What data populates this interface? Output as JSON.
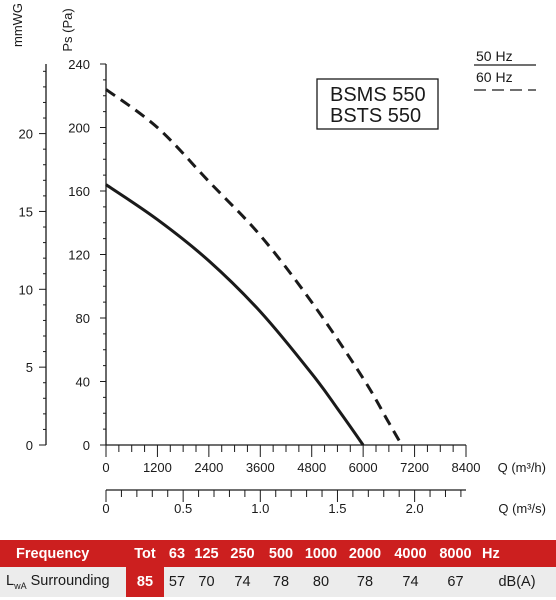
{
  "chart_data": {
    "type": "line",
    "models": [
      "BSMS 550",
      "BSTS 550"
    ],
    "legend": {
      "placement": "top-right",
      "labels": [
        "50 Hz",
        "60 Hz"
      ]
    },
    "left_axes": [
      {
        "label": "mmWG",
        "ticks": [
          "0",
          "5",
          "10",
          "15",
          "20"
        ],
        "range": [
          0,
          24.47
        ]
      },
      {
        "label": "Ps (Pa)",
        "ticks": [
          "0",
          "40",
          "80",
          "120",
          "160",
          "200",
          "240"
        ],
        "range": [
          0,
          240
        ]
      }
    ],
    "bottom_axes": [
      {
        "label": "Q (m³/h)",
        "ticks": [
          "0",
          "1200",
          "2400",
          "3600",
          "4800",
          "6000",
          "7200",
          "8400"
        ],
        "range": [
          0,
          8400
        ]
      },
      {
        "label": "Q (m³/s)",
        "ticks": [
          "0",
          "0.5",
          "1.0",
          "1.5",
          "2.0"
        ],
        "range": [
          0,
          2.333
        ]
      }
    ],
    "grid": false,
    "series": [
      {
        "name": "50 Hz",
        "style": "solid",
        "x": [
          0,
          1200,
          2400,
          3600,
          4800,
          5400,
          6000
        ],
        "y": [
          164,
          142,
          116,
          84,
          45,
          23,
          0
        ]
      },
      {
        "name": "60 Hz",
        "style": "dashed",
        "x": [
          0,
          1200,
          2400,
          3600,
          4800,
          6000,
          6600,
          6900
        ],
        "y": [
          224,
          200,
          166,
          132,
          90,
          42,
          14,
          0
        ]
      }
    ]
  },
  "table": {
    "header": {
      "label": "Frequency",
      "tot": "Tot",
      "bands": [
        "63",
        "125",
        "250",
        "500",
        "1000",
        "2000",
        "4000",
        "8000"
      ],
      "unit": "Hz"
    },
    "row": {
      "label_main": "L",
      "label_sub": "wA",
      "label_rest": " Surrounding",
      "tot": "85",
      "values": [
        "57",
        "70",
        "74",
        "78",
        "80",
        "78",
        "74",
        "67"
      ],
      "unit": "dB(A)"
    }
  }
}
